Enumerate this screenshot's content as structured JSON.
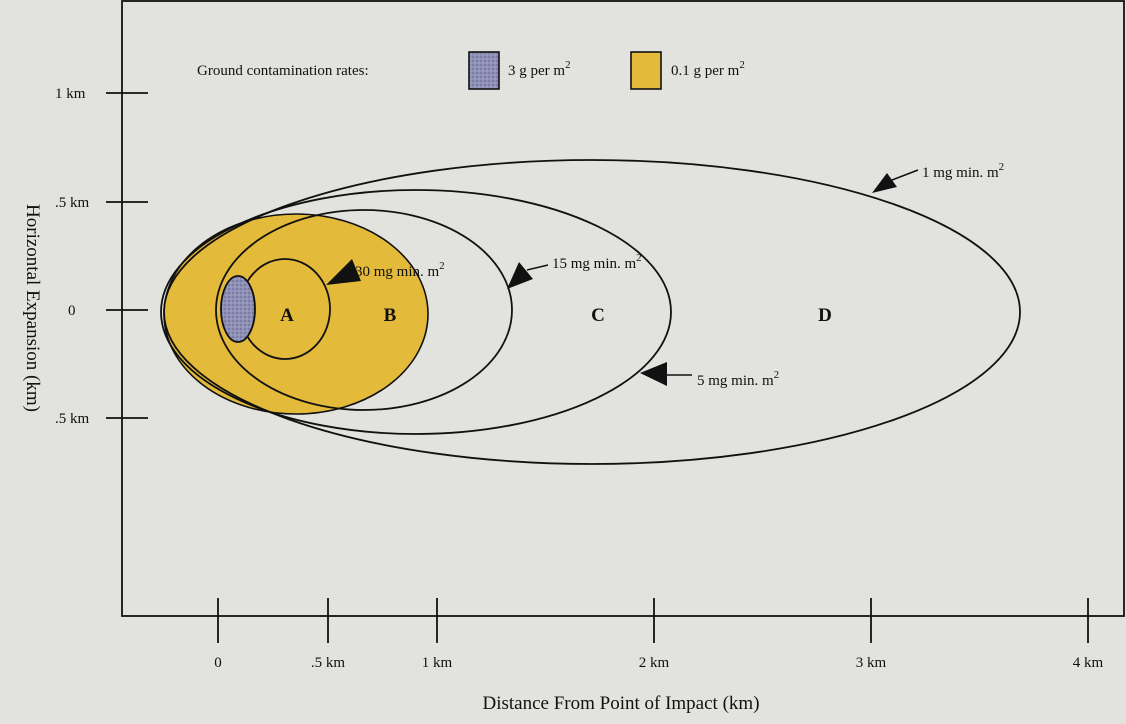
{
  "legend": {
    "title": "Ground contamination rates:",
    "items": [
      {
        "label": "3 g per m",
        "sup": "2",
        "color": "#8e90b6"
      },
      {
        "label": "0.1 g per m",
        "sup": "2",
        "color": "#e3ba3a"
      }
    ]
  },
  "x_axis": {
    "title": "Distance From Point of Impact (km)",
    "ticks": [
      "0",
      ".5 km",
      "1 km",
      "2 km",
      "3 km",
      "4 km"
    ]
  },
  "y_axis": {
    "title": "Horizontal Expansion (km)",
    "ticks": [
      "1 km",
      ".5 km",
      "0",
      ".5 km"
    ]
  },
  "regions": {
    "a": "A",
    "b": "B",
    "c": "C",
    "d": "D"
  },
  "dose_labels": {
    "d1": {
      "text": "1 mg min. m",
      "sup": "2"
    },
    "d30": {
      "text": "30 mg min. m",
      "sup": "2"
    },
    "d15": {
      "text": "15 mg min. m",
      "sup": "2"
    },
    "d5": {
      "text": "5 mg min. m",
      "sup": "2"
    }
  },
  "colors": {
    "contamination_high": "#8e90b6",
    "contamination_low": "#e3ba3a",
    "outline": "#111111",
    "background": "#e2e2de"
  }
}
